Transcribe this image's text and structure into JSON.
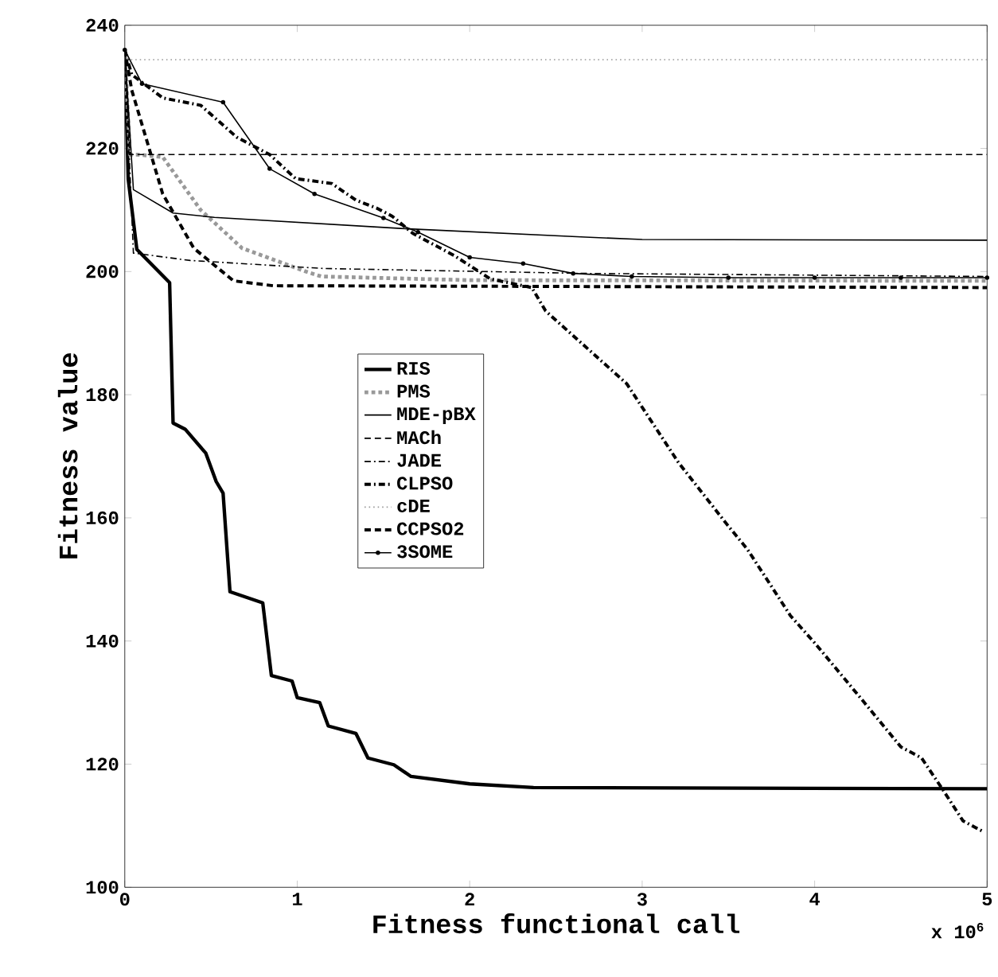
{
  "chart_data": {
    "type": "line",
    "xlabel": "Fitness functional call",
    "ylabel": "Fitness value",
    "annotations": [
      "x 10$^{6}$"
    ],
    "xlim": [
      0,
      5
    ],
    "ylim": [
      100,
      240
    ],
    "xticks": [
      0,
      1,
      2,
      3,
      4,
      5
    ],
    "yticks": [
      100,
      120,
      140,
      160,
      180,
      200,
      220,
      240
    ],
    "grid": false,
    "legend": "center",
    "series": [
      {
        "name": "RIS",
        "color": "#000000",
        "line_style": "solid",
        "x": [
          0,
          0.02,
          0.07,
          0.26,
          0.28,
          0.35,
          0.47,
          0.53,
          0.57,
          0.61,
          0.8,
          0.85,
          0.97,
          1.0,
          1.13,
          1.18,
          1.34,
          1.41,
          1.56,
          1.66,
          2.0,
          2.37,
          5
        ],
        "values": [
          236,
          215,
          203.6,
          198.2,
          175.4,
          174.4,
          170.5,
          165.9,
          164,
          148,
          146.2,
          134.4,
          133.5,
          130.8,
          130,
          126.2,
          125,
          121,
          119.9,
          118,
          116.8,
          116.2,
          116
        ]
      },
      {
        "name": "PMS",
        "color": "#999999",
        "line_style": "dotted",
        "x": [
          0,
          0.03,
          0.07,
          0.22,
          0.44,
          0.68,
          1.05,
          1.14,
          2,
          5
        ],
        "values": [
          236,
          219,
          219,
          218.6,
          210,
          203.8,
          200,
          199.2,
          198.6,
          198.5
        ]
      },
      {
        "name": "MDE-pBX",
        "color": "#000000",
        "line_style": "solid",
        "x": [
          0,
          0.05,
          0.28,
          0.52,
          1.6,
          2.67,
          3,
          5
        ],
        "values": [
          236,
          213.3,
          209.5,
          208.8,
          207,
          205.6,
          205.2,
          205.1
        ]
      },
      {
        "name": "MACh",
        "color": "#000000",
        "line_style": "dashed",
        "x": [
          0,
          0.03,
          5
        ],
        "values": [
          236,
          219,
          219
        ]
      },
      {
        "name": "JADE",
        "color": "#000000",
        "line_style": "dashdot",
        "x": [
          0,
          0.05,
          0.38,
          1.15,
          2.67,
          5
        ],
        "values": [
          236,
          203,
          201.8,
          200.5,
          199.7,
          199.2
        ]
      },
      {
        "name": "CLPSO",
        "color": "#000000",
        "line_style": "dashdot",
        "x": [
          0,
          0.04,
          0.22,
          0.44,
          0.65,
          0.84,
          0.99,
          1.2,
          1.34,
          1.46,
          1.55,
          1.67,
          1.91,
          2.12,
          2.36,
          2.44,
          2.91,
          3.21,
          3.49,
          3.61,
          3.86,
          4.0,
          4.25,
          4.5,
          4.62,
          4.74,
          4.86,
          4.98
        ],
        "values": [
          236,
          232,
          228.2,
          227,
          221.8,
          219,
          215.1,
          214.3,
          211.6,
          210.3,
          209,
          206.2,
          202.6,
          198.8,
          197.4,
          193.6,
          181.8,
          169,
          159,
          154.9,
          144.1,
          139.7,
          131.3,
          122.8,
          121,
          116,
          110.8,
          109
        ]
      },
      {
        "name": "cDE",
        "color": "#999999",
        "line_style": "dotted",
        "x": [
          0,
          0.02,
          5
        ],
        "values": [
          236,
          234.4,
          234.4
        ]
      },
      {
        "name": "CCPSO2",
        "color": "#000000",
        "line_style": "dashed",
        "x": [
          0,
          0.04,
          0.22,
          0.4,
          0.63,
          0.86,
          5
        ],
        "values": [
          236,
          229.5,
          212.6,
          203.8,
          198.5,
          197.7,
          197.4
        ]
      },
      {
        "name": "3SOME",
        "color": "#000000",
        "line_style": "solid",
        "marker": "circle",
        "x": [
          0,
          0.1,
          0.57,
          0.84,
          1.1,
          1.5,
          1.7,
          2.0,
          2.31,
          2.6,
          2.94,
          3.5,
          4.0,
          4.5,
          5
        ],
        "values": [
          236,
          230.5,
          227.5,
          216.7,
          212.6,
          208.7,
          206.4,
          202.3,
          201.3,
          199.7,
          199.2,
          199,
          199,
          199,
          199
        ]
      }
    ]
  }
}
